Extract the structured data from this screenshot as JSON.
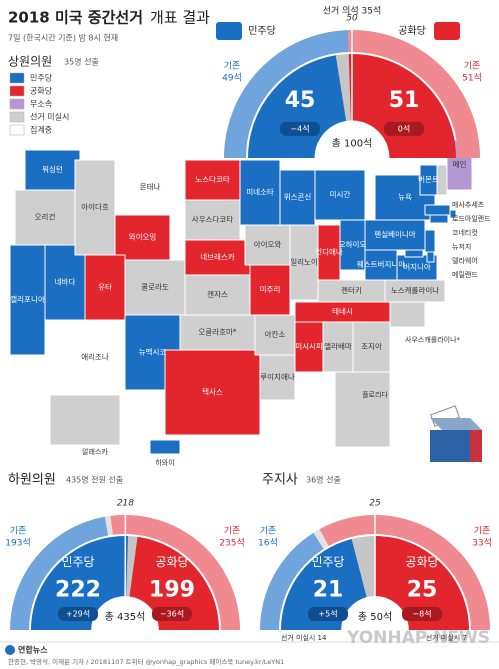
{
  "header": {
    "title": "2018 미국 중간선거",
    "title_rest": "개표 결과",
    "subtitle": "7일 (한국시간 기준) 밤 8시 현재"
  },
  "legend": [
    {
      "label": "민주당",
      "color": "#1b6fc2"
    },
    {
      "label": "공화당",
      "color": "#e3262e"
    },
    {
      "label": "무소속",
      "color": "#b597d4"
    },
    {
      "label": "선거 미실시",
      "color": "#cfcfcf"
    },
    {
      "label": "집계중",
      "color": "#ffffff"
    }
  ],
  "senate": {
    "title": "상원의원",
    "note": "35명 선출",
    "up_label": "선거 의석 35석",
    "total": 100,
    "total_label": "총 100석",
    "majority": 50,
    "dem": {
      "name": "민주당",
      "seats": 45,
      "change": "−4석",
      "prior_caption": "기존",
      "prior": 49,
      "prior_label": "49석",
      "color": "#1b6fc2",
      "prior_color": "#6fa5dc"
    },
    "rep": {
      "name": "공화당",
      "seats": 51,
      "change": "0석",
      "prior_caption": "기존",
      "prior": 51,
      "prior_label": "51석",
      "color": "#e3262e",
      "prior_color": "#f08a90"
    }
  },
  "house": {
    "title": "하원의원",
    "note": "435명 전원 선출",
    "total": 435,
    "total_label": "총 435석",
    "majority": 218,
    "dem": {
      "name": "민주당",
      "seats": 222,
      "change": "+29석",
      "prior_caption": "기존",
      "prior": 193,
      "prior_label": "193석",
      "color": "#1b6fc2",
      "prior_color": "#6fa5dc"
    },
    "rep": {
      "name": "공화당",
      "seats": 199,
      "change": "−36석",
      "prior_caption": "기존",
      "prior": 235,
      "prior_label": "235석",
      "color": "#e3262e",
      "prior_color": "#f08a90"
    }
  },
  "governor": {
    "title": "주지사",
    "note": "36명 선출",
    "total": 50,
    "total_label": "총 50석",
    "majority": 25,
    "dem": {
      "name": "민주당",
      "seats": 21,
      "change": "+5석",
      "prior_caption": "기존",
      "prior": 16,
      "prior_label": "16석",
      "not_up": "선거 미실시 14",
      "color": "#1b6fc2",
      "prior_color": "#6fa5dc"
    },
    "rep": {
      "name": "공화당",
      "seats": 25,
      "change": "−8석",
      "prior_caption": "기존",
      "prior": 33,
      "prior_label": "33석",
      "not_up": "선거 미실시 7",
      "color": "#e3262e",
      "prior_color": "#f08a90"
    }
  },
  "map": {
    "states": [
      {
        "name": "워싱턴",
        "color": "#1b6fc2"
      },
      {
        "name": "오리건",
        "color": "#cfcfcf"
      },
      {
        "name": "캘리포니아",
        "color": "#1b6fc2"
      },
      {
        "name": "네바다",
        "color": "#1b6fc2"
      },
      {
        "name": "아이다호",
        "color": "#cfcfcf"
      },
      {
        "name": "몬태나",
        "color": "#ffffff"
      },
      {
        "name": "와이오밍",
        "color": "#e3262e"
      },
      {
        "name": "유타",
        "color": "#e3262e"
      },
      {
        "name": "애리조나",
        "color": "#ffffff"
      },
      {
        "name": "뉴멕시코",
        "color": "#1b6fc2"
      },
      {
        "name": "콜로라도",
        "color": "#cfcfcf"
      },
      {
        "name": "노스다코타",
        "color": "#e3262e"
      },
      {
        "name": "사우스다코타",
        "color": "#cfcfcf"
      },
      {
        "name": "네브래스카",
        "color": "#e3262e"
      },
      {
        "name": "캔자스",
        "color": "#cfcfcf"
      },
      {
        "name": "오클라호마*",
        "color": "#cfcfcf"
      },
      {
        "name": "텍사스",
        "color": "#e3262e"
      },
      {
        "name": "미네소타",
        "color": "#1b6fc2"
      },
      {
        "name": "아이오와",
        "color": "#cfcfcf"
      },
      {
        "name": "미주리",
        "color": "#e3262e"
      },
      {
        "name": "아칸소",
        "color": "#cfcfcf"
      },
      {
        "name": "루이지애나",
        "color": "#cfcfcf"
      },
      {
        "name": "위스콘신",
        "color": "#1b6fc2"
      },
      {
        "name": "일리노이",
        "color": "#cfcfcf"
      },
      {
        "name": "미시간",
        "color": "#1b6fc2"
      },
      {
        "name": "인디애나",
        "color": "#e3262e"
      },
      {
        "name": "오하이오",
        "color": "#1b6fc2"
      },
      {
        "name": "켄터키",
        "color": "#cfcfcf"
      },
      {
        "name": "테네시",
        "color": "#e3262e"
      },
      {
        "name": "미시시피",
        "color": "#e3262e"
      },
      {
        "name": "앨라배마",
        "color": "#cfcfcf"
      },
      {
        "name": "조지아",
        "color": "#cfcfcf"
      },
      {
        "name": "플로리다",
        "color": "#cfcfcf"
      },
      {
        "name": "사우스캐롤라이나*",
        "color": "#cfcfcf"
      },
      {
        "name": "노스캐롤라이나",
        "color": "#cfcfcf"
      },
      {
        "name": "웨스트버지니아",
        "color": "#1b6fc2"
      },
      {
        "name": "버지니아",
        "color": "#1b6fc2"
      },
      {
        "name": "펜실베이니아",
        "color": "#1b6fc2"
      },
      {
        "name": "뉴욕",
        "color": "#1b6fc2"
      },
      {
        "name": "버몬트",
        "color": "#1b6fc2"
      },
      {
        "name": "뉴햄프셔",
        "color": "#cfcfcf"
      },
      {
        "name": "메인",
        "color": "#b597d4"
      },
      {
        "name": "매사추세츠",
        "color": "#1b6fc2"
      },
      {
        "name": "로드아일랜드",
        "color": "#1b6fc2"
      },
      {
        "name": "코네티컷",
        "color": "#1b6fc2"
      },
      {
        "name": "뉴저지",
        "color": "#1b6fc2"
      },
      {
        "name": "델라웨어",
        "color": "#1b6fc2"
      },
      {
        "name": "메릴랜드",
        "color": "#1b6fc2"
      },
      {
        "name": "알래스카",
        "color": "#cfcfcf"
      },
      {
        "name": "하와이",
        "color": "#1b6fc2"
      }
    ]
  },
  "footer": {
    "brand": "연합뉴스",
    "watermark": "YONHAP NEWS",
    "credits": "한종현, 박영석, 이재윤 기자 / 20181107  트위터 @yonhap_graphics  페이스북 tuney.kr/LeYN1"
  }
}
